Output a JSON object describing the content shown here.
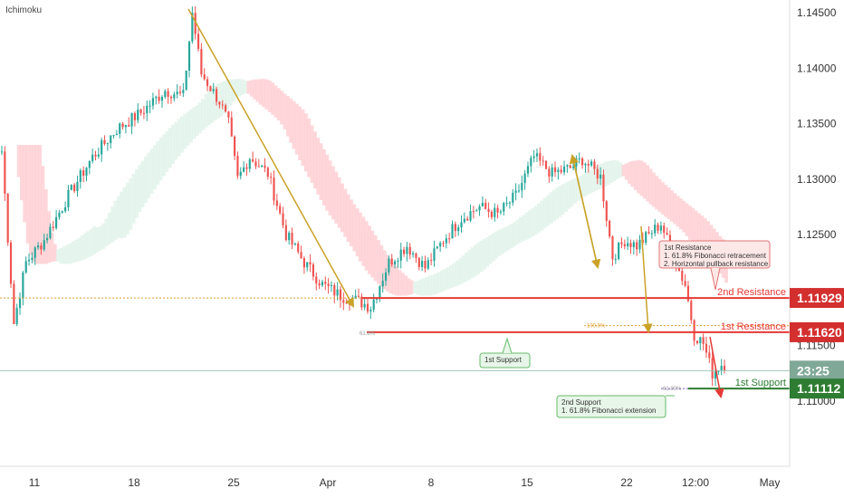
{
  "indicator_label": "Ichimoku",
  "colors": {
    "up": "#26a69a",
    "down": "#ef5350",
    "resistance": "#e53935",
    "support": "#2e7d32",
    "arrow_gold": "#c9a227",
    "price_line": "#9ec5b9",
    "cloud_red": "#ffcdd2",
    "cloud_green": "#e0f2e9"
  },
  "current_price_label": "23:25",
  "chart_data": {
    "type": "candlestick",
    "title": "",
    "ylim": [
      1.1055,
      1.1455
    ],
    "y_ticks": [
      "1.14500",
      "1.14000",
      "1.13500",
      "1.13000",
      "1.12500",
      "1.11500",
      "1.11000"
    ],
    "x_ticks": [
      "11",
      "18",
      "25",
      "Apr",
      "8",
      "15",
      "22",
      "12:00",
      "May"
    ],
    "price_path": [
      {
        "i": 0,
        "p": 1.1325
      },
      {
        "i": 4,
        "p": 1.117
      },
      {
        "i": 8,
        "p": 1.1225
      },
      {
        "i": 14,
        "p": 1.1245
      },
      {
        "i": 22,
        "p": 1.1285
      },
      {
        "i": 30,
        "p": 1.132
      },
      {
        "i": 38,
        "p": 1.1345
      },
      {
        "i": 46,
        "p": 1.136
      },
      {
        "i": 54,
        "p": 1.138
      },
      {
        "i": 60,
        "p": 1.1375
      },
      {
        "i": 63,
        "p": 1.145
      },
      {
        "i": 66,
        "p": 1.1395
      },
      {
        "i": 72,
        "p": 1.137
      },
      {
        "i": 75,
        "p": 1.135
      },
      {
        "i": 78,
        "p": 1.13
      },
      {
        "i": 82,
        "p": 1.132
      },
      {
        "i": 88,
        "p": 1.1305
      },
      {
        "i": 94,
        "p": 1.125
      },
      {
        "i": 100,
        "p": 1.1225
      },
      {
        "i": 106,
        "p": 1.1205
      },
      {
        "i": 112,
        "p": 1.1195
      },
      {
        "i": 118,
        "p": 1.119
      },
      {
        "i": 122,
        "p": 1.1185
      },
      {
        "i": 128,
        "p": 1.1225
      },
      {
        "i": 134,
        "p": 1.124
      },
      {
        "i": 140,
        "p": 1.122
      },
      {
        "i": 146,
        "p": 1.1245
      },
      {
        "i": 152,
        "p": 1.1265
      },
      {
        "i": 158,
        "p": 1.1275
      },
      {
        "i": 164,
        "p": 1.1268
      },
      {
        "i": 170,
        "p": 1.1285
      },
      {
        "i": 176,
        "p": 1.132
      },
      {
        "i": 182,
        "p": 1.1305
      },
      {
        "i": 188,
        "p": 1.131
      },
      {
        "i": 192,
        "p": 1.1318
      },
      {
        "i": 198,
        "p": 1.1302
      },
      {
        "i": 202,
        "p": 1.123
      },
      {
        "i": 206,
        "p": 1.1245
      },
      {
        "i": 210,
        "p": 1.124
      },
      {
        "i": 214,
        "p": 1.125
      },
      {
        "i": 218,
        "p": 1.126
      },
      {
        "i": 222,
        "p": 1.123
      },
      {
        "i": 226,
        "p": 1.1205
      },
      {
        "i": 229,
        "p": 1.116
      },
      {
        "i": 232,
        "p": 1.1152
      },
      {
        "i": 235,
        "p": 1.1125
      },
      {
        "i": 238,
        "p": 1.1133
      }
    ],
    "levels": [
      {
        "name": "2nd Resistance",
        "value": "1.11929",
        "type": "resistance"
      },
      {
        "name": "1st Resistance",
        "value": "1.11620",
        "type": "resistance"
      },
      {
        "name": "1st Support",
        "value": "1.11112",
        "type": "support"
      }
    ],
    "fib_labels": [
      "61.8%",
      "100.0%",
      "61.80%"
    ],
    "annotations": [
      {
        "id": "resistance-note",
        "lines": [
          "1st Resistance",
          "1. 61.8% Fibonacci retracement",
          "2. Horizontal pullback resistance"
        ]
      },
      {
        "id": "support-note-1",
        "lines": [
          "1st Support"
        ]
      },
      {
        "id": "support-note-2",
        "lines": [
          "2nd Support",
          "1. 61.8% Fibonacci extension"
        ]
      }
    ]
  }
}
